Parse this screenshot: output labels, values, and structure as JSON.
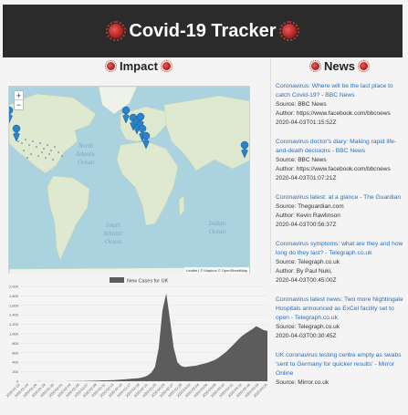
{
  "header": {
    "title": "Covid-19 Tracker",
    "icon": "virus-icon"
  },
  "impact": {
    "title": "Impact"
  },
  "news": {
    "title": "News",
    "items": [
      {
        "title": "Coronavirus: Where will be the last place to catch Covid-19? - BBC News",
        "source": "Source: BBC News",
        "author": "Author: https://www.facebook.com/bbcnews",
        "date": "2020-04-03T01:15:52Z"
      },
      {
        "title": "Coronavirus doctor's diary: Making rapid life-and-death decisions - BBC News",
        "source": "Source: BBC News",
        "author": "Author: https://www.facebook.com/bbcnews",
        "date": "2020-04-03T01:07:21Z"
      },
      {
        "title": "Coronavirus latest: at a glance - The Guardian",
        "source": "Source: Theguardian.com",
        "author": "Author: Kevin Rawlinson",
        "date": "2020-04-03T00:56:37Z"
      },
      {
        "title": "Coronavirus symptoms: what are they and how long do they last? - Telegraph.co.uk",
        "source": "Source: Telegraph.co.uk",
        "author": "Author: By Paul Nuki,",
        "date": "2020-04-03T00:45:00Z"
      },
      {
        "title": "Coronavirus latest news: Two more Nightingale Hospitals announced as ExCel facility set to open - Telegraph.co.uk",
        "source": "Source: Telegraph.co.uk",
        "author": "",
        "date": "2020-04-03T00:30:45Z"
      },
      {
        "title": "UK coronavirus testing centre empty as swabs 'sent to Germany for quicker results' - Mirror Online",
        "source": "Source: Mirror.co.uk",
        "author": "",
        "date": ""
      }
    ]
  },
  "map": {
    "zoom_in": "+",
    "zoom_out": "−",
    "attribution": "Leaflet | © Mapbox © OpenStreetMap",
    "labels": {
      "north_atlantic_1": "North",
      "north_atlantic_2": "Atlantic",
      "north_atlantic_3": "Ocean",
      "south_atlantic_1": "South",
      "south_atlantic_2": "Atlantic",
      "south_atlantic_3": "Ocean",
      "indian_1": "Indian",
      "indian_2": "Ocean"
    },
    "colors": {
      "water": "#aad3df",
      "land": "#dfe9cf",
      "marker": "#2b82cb"
    }
  },
  "chart_data": {
    "type": "area",
    "legend": "New Cases for UK",
    "y_ticks": [
      0,
      200,
      400,
      600,
      800,
      1000,
      1200,
      1400,
      1600,
      1800,
      2000
    ],
    "ylim": [
      0,
      2000
    ],
    "x_labels": [
      "2020-01-22",
      "2020-01-24",
      "2020-01-26",
      "2020-01-28",
      "2020-01-30",
      "2020-02-01",
      "2020-02-03",
      "2020-02-05",
      "2020-02-07",
      "2020-02-09",
      "2020-02-11",
      "2020-02-13",
      "2020-02-15",
      "2020-02-17",
      "2020-02-19",
      "2020-02-21",
      "2020-02-23",
      "2020-02-25",
      "2020-02-27",
      "2020-02-29",
      "2020-03-02",
      "2020-03-04",
      "2020-03-06",
      "2020-03-08",
      "2020-03-10",
      "2020-03-12",
      "2020-03-14",
      "2020-03-16",
      "2020-03-18",
      "2020-03-20"
    ],
    "values": [
      0,
      0,
      0,
      0,
      0,
      2,
      0,
      0,
      1,
      2,
      1,
      0,
      1,
      2,
      3,
      5,
      4,
      6,
      8,
      10,
      12,
      15,
      18,
      20,
      22,
      25,
      30,
      35,
      40,
      48,
      55,
      60,
      70,
      90,
      120,
      180,
      300,
      700,
      1500,
      1850,
      1300,
      700,
      400,
      320,
      300,
      310,
      320,
      330,
      350,
      370,
      390,
      420,
      450,
      500,
      560,
      620,
      700,
      780,
      860,
      940,
      1000,
      1050,
      1100,
      1160,
      1120,
      1080,
      1060
    ],
    "color": "#5c5c5c"
  }
}
